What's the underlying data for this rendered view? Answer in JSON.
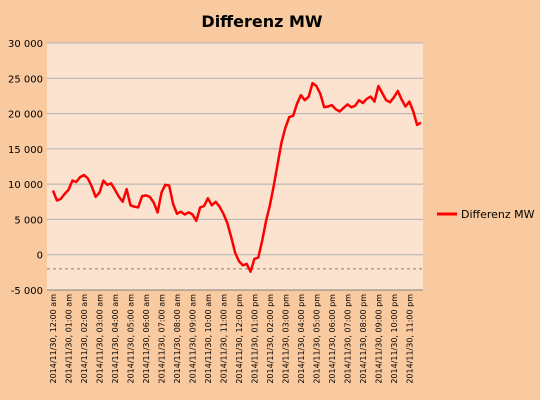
{
  "chart_data": {
    "type": "line",
    "title": "Differenz MW",
    "xlabel": "",
    "ylabel": "",
    "ylim": [
      -5000,
      30000
    ],
    "y_ticks": [
      "-5 000",
      "0",
      "5 000",
      "10 000",
      "15 000",
      "20 000",
      "25 000",
      "30 000"
    ],
    "y_tick_values": [
      -5000,
      0,
      5000,
      10000,
      15000,
      20000,
      25000,
      30000
    ],
    "grid": "horizontal",
    "legend_position": "right",
    "colors": {
      "series": "#ff0000",
      "plot_bg": "#fbe3cf",
      "page_bg": "#f9c9a0",
      "grid": "#b0b0b0"
    },
    "x_tick_labels": [
      "2014/11/30, 12:00 am",
      "2014/11/30, 01:00 am",
      "2014/11/30, 02:00 am",
      "2014/11/30, 03:00 am",
      "2014/11/30, 04:00 am",
      "2014/11/30, 05:00 am",
      "2014/11/30, 06:00 am",
      "2014/11/30, 07:00 am",
      "2014/11/30, 08:00 am",
      "2014/11/30, 09:00 am",
      "2014/11/30, 10:00 am",
      "2014/11/30, 11:00 am",
      "2014/11/30, 12:00 pm",
      "2014/11/30, 01:00 pm",
      "2014/11/30, 02:00 pm",
      "2014/11/30, 03:00 pm",
      "2014/11/30, 04:00 pm",
      "2014/11/30, 05:00 pm",
      "2014/11/30, 06:00 pm",
      "2014/11/30, 07:00 pm",
      "2014/11/30, 08:00 pm",
      "2014/11/30, 09:00 pm",
      "2014/11/30, 10:00 pm",
      "2014/11/30, 11:00 pm"
    ],
    "series": [
      {
        "name": "Differenz MW",
        "values": [
          9100,
          7700,
          7900,
          8600,
          9200,
          10500,
          10300,
          11000,
          11300,
          10800,
          9700,
          8200,
          8800,
          10500,
          9900,
          10100,
          9200,
          8200,
          7500,
          9300,
          7000,
          6800,
          6700,
          8300,
          8400,
          8200,
          7400,
          6000,
          8800,
          9900,
          9800,
          7200,
          5800,
          6100,
          5700,
          6000,
          5700,
          4800,
          6700,
          6900,
          8000,
          7000,
          7500,
          6800,
          5800,
          4500,
          2500,
          300,
          -900,
          -1500,
          -1300,
          -2400,
          -600,
          -400,
          2000,
          4800,
          7000,
          9800,
          12900,
          15900,
          18000,
          19500,
          19700,
          21400,
          22600,
          21900,
          22400,
          24300,
          23900,
          22800,
          20900,
          21000,
          21200,
          20600,
          20300,
          20800,
          21300,
          20900,
          21100,
          21900,
          21500,
          22100,
          22400,
          21700,
          23900,
          22900,
          21900,
          21600,
          22300,
          23200,
          22000,
          21000,
          21700,
          20300,
          18400,
          18700
        ]
      }
    ]
  }
}
